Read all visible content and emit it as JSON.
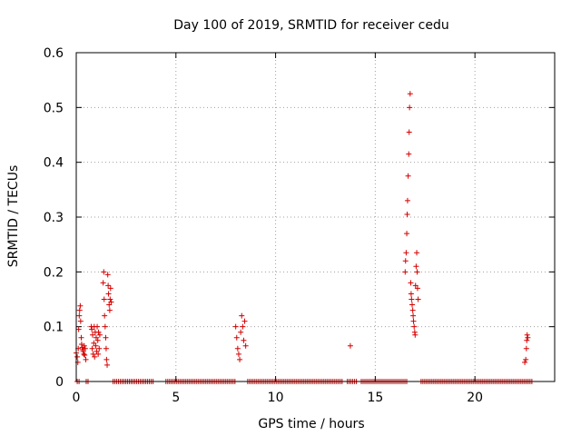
{
  "chart_data": {
    "type": "scatter",
    "title": "Day 100 of 2019, SRMTID for receiver cedu",
    "xlabel": "GPS time / hours",
    "ylabel": "SRMTID / TECUs",
    "xlim": [
      0,
      24
    ],
    "ylim": [
      0,
      0.6
    ],
    "xticks": [
      0,
      5,
      10,
      15,
      20
    ],
    "yticks": [
      0,
      0.1,
      0.2,
      0.3,
      0.4,
      0.5,
      0.6
    ],
    "xtick_labels": [
      "0",
      "5",
      "10",
      "15",
      "20"
    ],
    "ytick_labels": [
      "0",
      "0.1",
      "0.2",
      "0.3",
      "0.4",
      "0.5",
      "0.6"
    ],
    "grid": true,
    "marker": "+",
    "color": "#d40000",
    "zero_runs": [
      [
        0.05,
        0.2
      ],
      [
        0.5,
        0.6
      ],
      [
        1.85,
        3.9
      ],
      [
        4.5,
        8.0
      ],
      [
        8.6,
        13.4
      ],
      [
        13.6,
        14.1
      ],
      [
        14.3,
        16.6
      ],
      [
        17.3,
        22.9
      ]
    ],
    "series": [
      {
        "name": "SRMTID",
        "points": [
          [
            0.0,
            0.052
          ],
          [
            0.05,
            0.045
          ],
          [
            0.08,
            0.035
          ],
          [
            0.1,
            0.06
          ],
          [
            0.12,
            0.095
          ],
          [
            0.15,
            0.12
          ],
          [
            0.17,
            0.13
          ],
          [
            0.2,
            0.138
          ],
          [
            0.22,
            0.11
          ],
          [
            0.25,
            0.08
          ],
          [
            0.27,
            0.068
          ],
          [
            0.3,
            0.062
          ],
          [
            0.33,
            0.058
          ],
          [
            0.35,
            0.055
          ],
          [
            0.38,
            0.05
          ],
          [
            0.4,
            0.065
          ],
          [
            0.42,
            0.048
          ],
          [
            0.45,
            0.06
          ],
          [
            0.48,
            0.04
          ],
          [
            0.75,
            0.1
          ],
          [
            0.78,
            0.095
          ],
          [
            0.8,
            0.06
          ],
          [
            0.82,
            0.085
          ],
          [
            0.85,
            0.05
          ],
          [
            0.88,
            0.07
          ],
          [
            0.9,
            0.1
          ],
          [
            0.92,
            0.045
          ],
          [
            0.95,
            0.09
          ],
          [
            0.98,
            0.065
          ],
          [
            1.0,
            0.08
          ],
          [
            1.02,
            0.055
          ],
          [
            1.05,
            0.1
          ],
          [
            1.08,
            0.075
          ],
          [
            1.1,
            0.05
          ],
          [
            1.12,
            0.09
          ],
          [
            1.15,
            0.06
          ],
          [
            1.18,
            0.085
          ],
          [
            1.35,
            0.18
          ],
          [
            1.38,
            0.2
          ],
          [
            1.4,
            0.15
          ],
          [
            1.42,
            0.12
          ],
          [
            1.45,
            0.1
          ],
          [
            1.48,
            0.08
          ],
          [
            1.5,
            0.06
          ],
          [
            1.52,
            0.04
          ],
          [
            1.55,
            0.03
          ],
          [
            1.58,
            0.195
          ],
          [
            1.6,
            0.175
          ],
          [
            1.62,
            0.16
          ],
          [
            1.65,
            0.14
          ],
          [
            1.68,
            0.13
          ],
          [
            1.7,
            0.15
          ],
          [
            1.72,
            0.17
          ],
          [
            1.75,
            0.145
          ],
          [
            8.0,
            0.1
          ],
          [
            8.05,
            0.08
          ],
          [
            8.1,
            0.06
          ],
          [
            8.15,
            0.05
          ],
          [
            8.2,
            0.04
          ],
          [
            8.25,
            0.09
          ],
          [
            8.3,
            0.12
          ],
          [
            8.35,
            0.1
          ],
          [
            8.4,
            0.075
          ],
          [
            8.45,
            0.11
          ],
          [
            8.5,
            0.065
          ],
          [
            13.75,
            0.065
          ],
          [
            16.5,
            0.2
          ],
          [
            16.52,
            0.22
          ],
          [
            16.55,
            0.235
          ],
          [
            16.58,
            0.27
          ],
          [
            16.6,
            0.305
          ],
          [
            16.62,
            0.33
          ],
          [
            16.65,
            0.375
          ],
          [
            16.68,
            0.415
          ],
          [
            16.7,
            0.455
          ],
          [
            16.72,
            0.5
          ],
          [
            16.75,
            0.525
          ],
          [
            16.78,
            0.18
          ],
          [
            16.8,
            0.16
          ],
          [
            16.82,
            0.15
          ],
          [
            16.85,
            0.14
          ],
          [
            16.88,
            0.13
          ],
          [
            16.9,
            0.12
          ],
          [
            16.92,
            0.11
          ],
          [
            16.95,
            0.1
          ],
          [
            16.98,
            0.09
          ],
          [
            17.0,
            0.085
          ],
          [
            17.02,
            0.175
          ],
          [
            17.05,
            0.21
          ],
          [
            17.08,
            0.235
          ],
          [
            17.1,
            0.2
          ],
          [
            17.12,
            0.17
          ],
          [
            17.15,
            0.15
          ],
          [
            22.5,
            0.035
          ],
          [
            22.55,
            0.04
          ],
          [
            22.58,
            0.06
          ],
          [
            22.6,
            0.075
          ],
          [
            22.62,
            0.085
          ],
          [
            22.65,
            0.08
          ]
        ]
      }
    ]
  }
}
